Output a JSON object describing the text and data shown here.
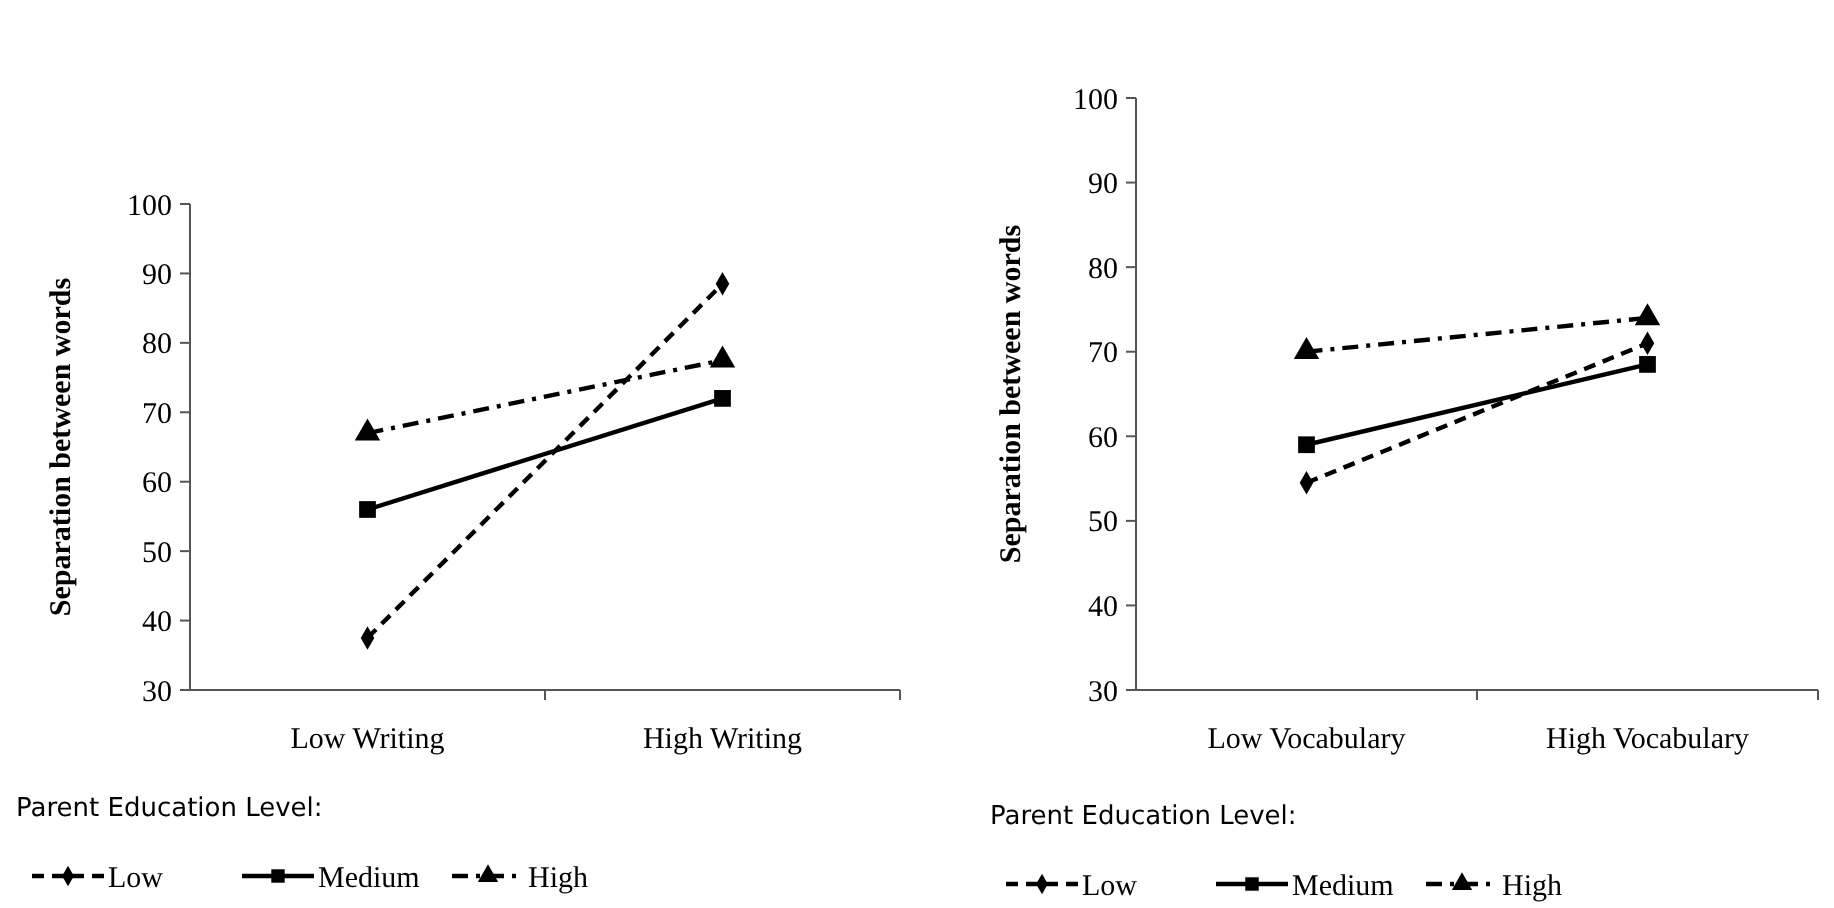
{
  "chart_data": [
    {
      "type": "line",
      "ylabel": "Separation between words",
      "categories": [
        "Low Writing",
        "High Writing"
      ],
      "ylim": [
        30,
        100
      ],
      "yticks": [
        30,
        40,
        50,
        60,
        70,
        80,
        90,
        100
      ],
      "grid": false,
      "legend": "bottom",
      "legend_title": "Parent Education Level:",
      "series": [
        {
          "name": "Low",
          "color": "#000000",
          "values": [
            37.5,
            88.5
          ],
          "marker": "diamond",
          "line_style": "dashed"
        },
        {
          "name": "Medium",
          "color": "#000000",
          "values": [
            56,
            72
          ],
          "marker": "square",
          "line_style": "solid"
        },
        {
          "name": "High",
          "color": "#000000",
          "values": [
            67,
            77.5
          ],
          "marker": "triangle",
          "line_style": "dashdot"
        }
      ]
    },
    {
      "type": "line",
      "ylabel": "Separation between words",
      "categories": [
        "Low Vocabulary",
        "High Vocabulary"
      ],
      "ylim": [
        30,
        100
      ],
      "yticks": [
        30,
        40,
        50,
        60,
        70,
        80,
        90,
        100
      ],
      "grid": false,
      "legend": "bottom",
      "legend_title": "Parent Education Level:",
      "series": [
        {
          "name": "Low",
          "color": "#000000",
          "values": [
            54.5,
            71
          ],
          "marker": "diamond",
          "line_style": "dashed"
        },
        {
          "name": "Medium",
          "color": "#000000",
          "values": [
            59,
            68.5
          ],
          "marker": "square",
          "line_style": "solid"
        },
        {
          "name": "High",
          "color": "#000000",
          "values": [
            70,
            74
          ],
          "marker": "triangle",
          "line_style": "dashdot"
        }
      ]
    }
  ]
}
